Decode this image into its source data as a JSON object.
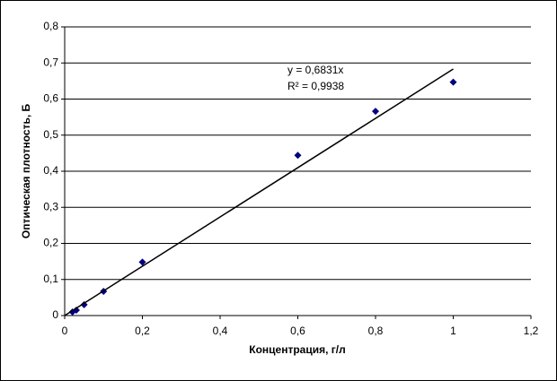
{
  "chart_data": {
    "type": "scatter",
    "x_label": "Концентрация, г/л",
    "y_label": "Оптическая плотность, Б",
    "series": [
      {
        "color": "#000080",
        "x": [
          0.02,
          0.03,
          0.05,
          0.1,
          0.2,
          0.6,
          0.8,
          1.0
        ],
        "values": [
          0.01,
          0.015,
          0.03,
          0.067,
          0.148,
          0.444,
          0.566,
          0.647
        ]
      }
    ],
    "trendline": {
      "slope": 0.6831,
      "equation": "y = 0,6831x",
      "r2_label": "R² = 0,9938",
      "color": "#000000"
    },
    "xlim": [
      0,
      1.2
    ],
    "xticks": [
      0,
      {
        "value": 0.2,
        "label": "0,2"
      },
      {
        "value": 0.4,
        "label": "0,4"
      },
      {
        "value": 0.6,
        "label": "0,6"
      },
      {
        "value": 0.8,
        "label": "0,8"
      },
      {
        "value": 1,
        "label": "1"
      },
      {
        "value": 1.2,
        "label": "1,2"
      }
    ],
    "ylim": [
      0,
      0.8
    ],
    "yticks": [
      0,
      {
        "value": 0.1,
        "label": "0,1"
      },
      {
        "value": 0.2,
        "label": "0,2"
      },
      {
        "value": 0.3,
        "label": "0,3"
      },
      {
        "value": 0.4,
        "label": "0,4"
      },
      {
        "value": 0.5,
        "label": "0,5"
      },
      {
        "value": 0.6,
        "label": "0,6"
      },
      {
        "value": 0.7,
        "label": "0,7"
      },
      {
        "value": 0.8,
        "label": "0,8"
      }
    ],
    "grid": true
  }
}
